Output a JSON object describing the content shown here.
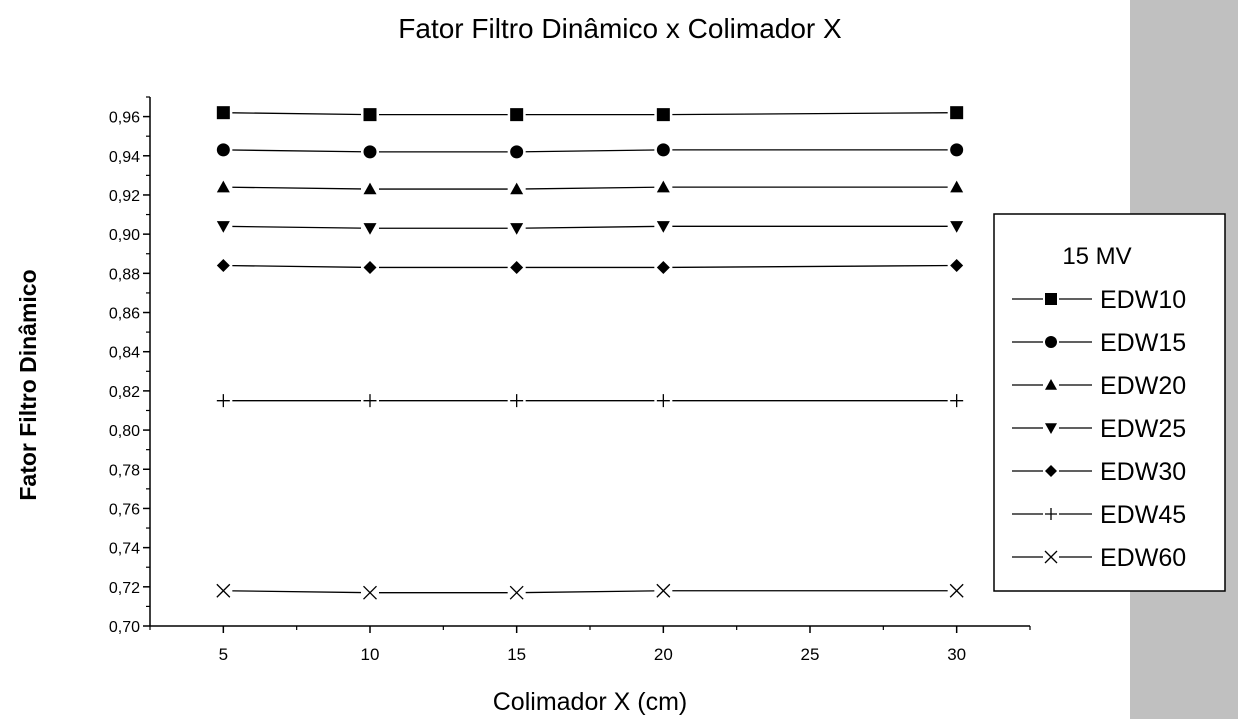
{
  "chart_data": {
    "type": "line",
    "title": "Fator Filtro Dinâmico x Colimador X",
    "xlabel": "Colimador X (cm)",
    "ylabel": "Fator Filtro Dinâmico",
    "xlim": [
      2.5,
      32.5
    ],
    "ylim": [
      0.7,
      0.97
    ],
    "x_ticks": [
      5,
      10,
      15,
      20,
      25,
      30
    ],
    "x_tick_labels": [
      "5",
      "10",
      "15",
      "20",
      "25",
      "30"
    ],
    "y_ticks": [
      0.7,
      0.72,
      0.74,
      0.76,
      0.78,
      0.8,
      0.82,
      0.84,
      0.86,
      0.88,
      0.9,
      0.92,
      0.94,
      0.96
    ],
    "y_tick_labels": [
      "0,70",
      "0,72",
      "0,74",
      "0,76",
      "0,78",
      "0,80",
      "0,82",
      "0,84",
      "0,86",
      "0,88",
      "0,90",
      "0,92",
      "0,94",
      "0,96"
    ],
    "x": [
      5,
      10,
      15,
      20,
      30
    ],
    "legend_title": "15 MV",
    "legend_position": "right",
    "grid": false,
    "series": [
      {
        "name": "EDW10",
        "marker": "square",
        "values": [
          0.962,
          0.961,
          0.961,
          0.961,
          0.962
        ]
      },
      {
        "name": "EDW15",
        "marker": "circle",
        "values": [
          0.943,
          0.942,
          0.942,
          0.943,
          0.943
        ]
      },
      {
        "name": "EDW20",
        "marker": "triangle-up",
        "values": [
          0.924,
          0.923,
          0.923,
          0.924,
          0.924
        ]
      },
      {
        "name": "EDW25",
        "marker": "triangle-down",
        "values": [
          0.904,
          0.903,
          0.903,
          0.904,
          0.904
        ]
      },
      {
        "name": "EDW30",
        "marker": "diamond",
        "values": [
          0.884,
          0.883,
          0.883,
          0.883,
          0.884
        ]
      },
      {
        "name": "EDW45",
        "marker": "plus",
        "values": [
          0.815,
          0.815,
          0.815,
          0.815,
          0.815
        ]
      },
      {
        "name": "EDW60",
        "marker": "cross",
        "values": [
          0.718,
          0.717,
          0.717,
          0.718,
          0.718
        ]
      }
    ],
    "colors": {
      "line": "#000000",
      "background": "#ffffff",
      "side_panel": "#c0c0c0"
    }
  }
}
